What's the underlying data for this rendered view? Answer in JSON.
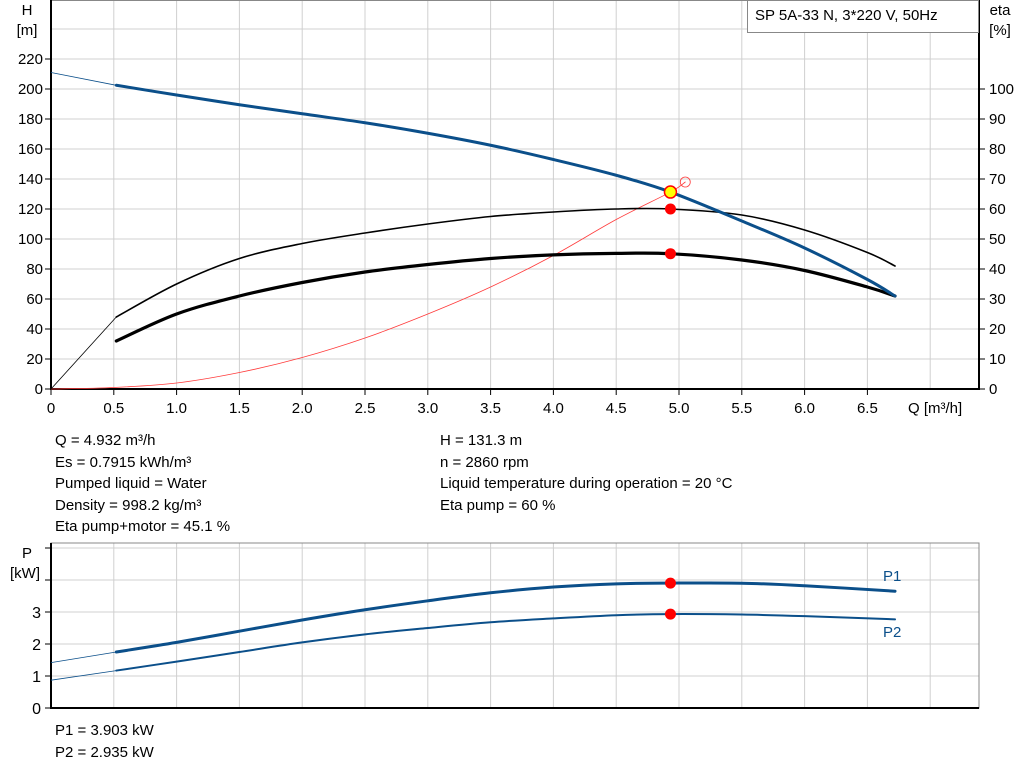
{
  "title": "SP 5A-33 N, 3*220 V, 50Hz",
  "chart_data": [
    {
      "type": "line",
      "title": "SP 5A-33 N, 3*220 V, 50Hz",
      "xlabel": "Q [m³/h]",
      "ylabel": "H [m]",
      "ylabel_name": "H",
      "ylabel_unit": "[m]",
      "y2label_name": "eta",
      "y2label_unit": "[%]",
      "xlabel_text": "Q [m³/h]",
      "xlim": [
        0,
        7.4
      ],
      "ylim": [
        0,
        260
      ],
      "y2lim": [
        0,
        130
      ],
      "grid": true,
      "x_ticks": [
        "0",
        "0.5",
        "1.0",
        "1.5",
        "2.0",
        "2.5",
        "3.0",
        "3.5",
        "4.0",
        "4.5",
        "5.0",
        "5.5",
        "6.0",
        "6.5"
      ],
      "y_ticks": [
        "0",
        "20",
        "40",
        "60",
        "80",
        "100",
        "120",
        "140",
        "160",
        "180",
        "200",
        "220"
      ],
      "y2_ticks": [
        "0",
        "10",
        "20",
        "30",
        "40",
        "50",
        "60",
        "70",
        "80",
        "90",
        "100"
      ],
      "series": [
        {
          "id": "H",
          "axis": "left",
          "color": "#0b4f8a",
          "x": [
            0,
            0.52,
            1,
            1.5,
            2,
            2.5,
            3,
            3.5,
            4,
            4.5,
            4.932,
            5.5,
            6,
            6.5,
            6.72
          ],
          "y": [
            211,
            202.5,
            196,
            189.5,
            183.5,
            177.5,
            170.5,
            162.5,
            153,
            142.5,
            131.3,
            112,
            94,
            73,
            62
          ],
          "thin_below": 0.52
        },
        {
          "id": "eta_pump",
          "axis": "right",
          "color": "#000000",
          "x": [
            0,
            0.52,
            1,
            1.5,
            2,
            2.5,
            3,
            3.5,
            4,
            4.5,
            4.932,
            5.5,
            6,
            6.5,
            6.72
          ],
          "y": [
            0,
            24,
            35,
            43.5,
            48.5,
            52,
            55,
            57.5,
            59,
            60,
            60,
            58,
            53,
            45.5,
            41
          ],
          "thin_below": 0.52
        },
        {
          "id": "eta_total",
          "axis": "right",
          "color": "#000000",
          "x": [
            0.52,
            1,
            1.5,
            2,
            2.5,
            3,
            3.5,
            4,
            4.5,
            4.932,
            5.5,
            6,
            6.5,
            6.72
          ],
          "y": [
            16,
            25,
            31,
            35.5,
            39,
            41.5,
            43.5,
            44.7,
            45.2,
            45.1,
            43,
            39.5,
            34,
            31
          ]
        },
        {
          "id": "system",
          "axis": "left",
          "color": "#ff3b3b",
          "x": [
            0,
            0.5,
            1,
            1.5,
            2,
            2.5,
            3,
            3.5,
            4,
            4.5,
            4.932,
            5.05
          ],
          "y": [
            0,
            1,
            4,
            11,
            21,
            34,
            50,
            68,
            89,
            113,
            131.3,
            138
          ]
        }
      ],
      "duty_point": {
        "Q": 4.932,
        "H": 131.3,
        "eta_pump": 60,
        "eta_total": 45.1
      }
    },
    {
      "type": "line",
      "ylabel_name": "P",
      "ylabel_unit": "[kW]",
      "xlim": [
        0,
        7.4
      ],
      "ylim": [
        0,
        5.2
      ],
      "grid": true,
      "y_ticks": [
        "0",
        "1",
        "2",
        "3"
      ],
      "series": [
        {
          "name": "P1",
          "color": "#0b4f8a",
          "x": [
            0,
            0.52,
            1,
            1.5,
            2,
            2.5,
            3,
            3.5,
            4,
            4.5,
            4.932,
            5.5,
            6,
            6.72
          ],
          "y": [
            1.42,
            1.75,
            2.05,
            2.4,
            2.75,
            3.07,
            3.35,
            3.6,
            3.78,
            3.88,
            3.903,
            3.9,
            3.82,
            3.65
          ],
          "thin_below": 0.52
        },
        {
          "name": "P2",
          "color": "#0b4f8a",
          "x": [
            0,
            0.52,
            1,
            1.5,
            2,
            2.5,
            3,
            3.5,
            4,
            4.5,
            4.932,
            5.5,
            6,
            6.72
          ],
          "y": [
            0.87,
            1.17,
            1.45,
            1.75,
            2.05,
            2.3,
            2.5,
            2.68,
            2.8,
            2.9,
            2.935,
            2.92,
            2.87,
            2.77
          ],
          "thin_below": 0.52
        }
      ],
      "duty_point": {
        "Q": 4.932,
        "P1": 3.903,
        "P2": 2.935
      }
    }
  ],
  "info_left": [
    "Q = 4.932 m³/h",
    "Es = 0.7915 kWh/m³",
    "Pumped liquid = Water",
    "Density = 998.2 kg/m³",
    "Eta pump+motor = 45.1 %"
  ],
  "info_right": [
    "H = 131.3 m",
    "n = 2860 rpm",
    "Liquid temperature during operation = 20 °C",
    "Eta pump = 60 %"
  ],
  "power_info": [
    "P1 = 3.903 kW",
    "P2 = 2.935 kW"
  ],
  "colors": {
    "head": "#0b4f8a",
    "efficiency": "#000000",
    "system": "#ff3b3b",
    "duty_point": "#ff0000",
    "duty_marker": "#ffff00",
    "grid": "#d0d0d0"
  }
}
